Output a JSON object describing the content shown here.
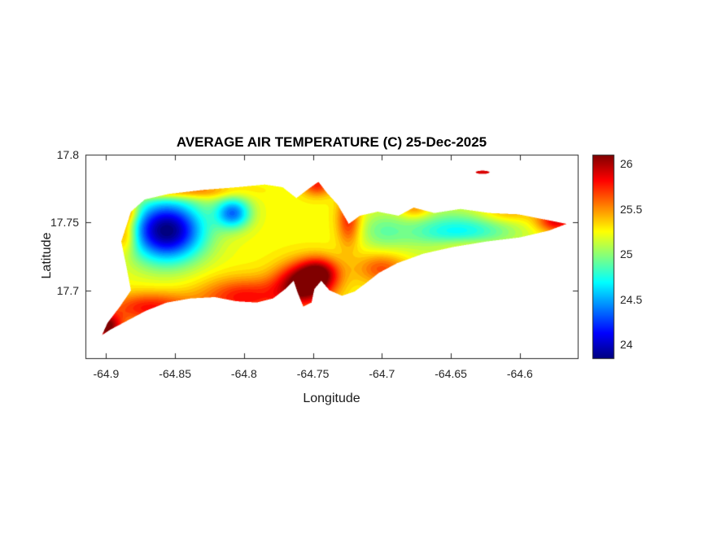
{
  "figure": {
    "title": "AVERAGE AIR TEMPERATURE (C) 25-Dec-2025",
    "xlabel": "Longitude",
    "ylabel": "Latitude"
  },
  "chart_data": {
    "type": "heatmap",
    "subtype": "filled-contour-map",
    "title": "AVERAGE AIR TEMPERATURE (C) 25-Dec-2025",
    "xlabel": "Longitude",
    "ylabel": "Latitude",
    "xlim": [
      -64.915,
      -64.558
    ],
    "ylim": [
      17.65,
      17.8
    ],
    "xtick_values": [
      -64.9,
      -64.85,
      -64.8,
      -64.75,
      -64.7,
      -64.65,
      -64.6
    ],
    "xtick_labels": [
      "-64.9",
      "-64.85",
      "-64.8",
      "-64.75",
      "-64.7",
      "-64.65",
      "-64.6"
    ],
    "ytick_values": [
      17.7,
      17.75,
      17.8
    ],
    "ytick_labels": [
      "17.7",
      "17.75",
      "17.8"
    ],
    "grid": false,
    "legend": false,
    "colorbar": {
      "colormap": "jet",
      "position": "right",
      "clim": [
        23.85,
        26.1
      ],
      "tick_values": [
        24,
        24.5,
        25,
        25.5,
        26
      ],
      "tick_labels": [
        "24",
        "24.5",
        "25",
        "25.5",
        "26"
      ]
    },
    "region": "Island-shaped filled temperature field (St. Croix-like outline); white outside coastline",
    "temp_extremes_c": {
      "min": 23.85,
      "min_location": [
        -64.856,
        17.744
      ],
      "max": 26.3,
      "max_location": [
        -64.757,
        17.704
      ]
    },
    "island_outline_lonlat": [
      [
        -64.889,
        17.736
      ],
      [
        -64.882,
        17.758
      ],
      [
        -64.872,
        17.767
      ],
      [
        -64.855,
        17.771
      ],
      [
        -64.83,
        17.774
      ],
      [
        -64.805,
        17.776
      ],
      [
        -64.785,
        17.778
      ],
      [
        -64.772,
        17.776
      ],
      [
        -64.762,
        17.768
      ],
      [
        -64.753,
        17.775
      ],
      [
        -64.746,
        17.78
      ],
      [
        -64.74,
        17.772
      ],
      [
        -64.732,
        17.763
      ],
      [
        -64.724,
        17.749
      ],
      [
        -64.716,
        17.755
      ],
      [
        -64.703,
        17.758
      ],
      [
        -64.688,
        17.755
      ],
      [
        -64.677,
        17.761
      ],
      [
        -64.662,
        17.757
      ],
      [
        -64.643,
        17.76
      ],
      [
        -64.622,
        17.757
      ],
      [
        -64.601,
        17.756
      ],
      [
        -64.581,
        17.752
      ],
      [
        -64.566,
        17.749
      ],
      [
        -64.579,
        17.744
      ],
      [
        -64.6,
        17.739
      ],
      [
        -64.624,
        17.736
      ],
      [
        -64.648,
        17.732
      ],
      [
        -64.67,
        17.727
      ],
      [
        -64.689,
        17.72
      ],
      [
        -64.702,
        17.713
      ],
      [
        -64.712,
        17.705
      ],
      [
        -64.72,
        17.699
      ],
      [
        -64.729,
        17.696
      ],
      [
        -64.738,
        17.7
      ],
      [
        -64.744,
        17.707
      ],
      [
        -64.749,
        17.701
      ],
      [
        -64.751,
        17.691
      ],
      [
        -64.757,
        17.688
      ],
      [
        -64.761,
        17.698
      ],
      [
        -64.764,
        17.707
      ],
      [
        -64.77,
        17.701
      ],
      [
        -64.779,
        17.694
      ],
      [
        -64.791,
        17.691
      ],
      [
        -64.806,
        17.692
      ],
      [
        -64.821,
        17.695
      ],
      [
        -64.839,
        17.694
      ],
      [
        -64.856,
        17.691
      ],
      [
        -64.871,
        17.685
      ],
      [
        -64.884,
        17.678
      ],
      [
        -64.897,
        17.671
      ],
      [
        -64.903,
        17.667
      ],
      [
        -64.899,
        17.676
      ],
      [
        -64.89,
        17.688
      ],
      [
        -64.882,
        17.7
      ],
      [
        -64.885,
        17.716
      ]
    ],
    "islet_lonlat": {
      "center": [
        -64.627,
        17.787
      ],
      "rx": 0.005,
      "ry": 0.0012,
      "temp_c": 25.9
    },
    "field_model": {
      "base_temp_c": 25.25,
      "contour_step_c": 0.05,
      "anomaly_format": [
        "lon",
        "lat",
        "delta_c",
        "sigma_lon",
        "sigma_lat"
      ],
      "anomalies": [
        [
          -64.856,
          17.744,
          -1.42,
          0.019,
          0.016
        ],
        [
          -64.808,
          17.757,
          -0.85,
          0.009,
          0.008
        ],
        [
          -64.645,
          17.742,
          -0.58,
          0.028,
          0.011
        ],
        [
          -64.7,
          17.744,
          -0.25,
          0.012,
          0.01
        ],
        [
          -64.757,
          17.704,
          0.95,
          0.014,
          0.011
        ],
        [
          -64.745,
          17.713,
          0.6,
          0.01,
          0.008
        ],
        [
          -64.8,
          17.695,
          0.55,
          0.022,
          0.01
        ],
        [
          -64.868,
          17.687,
          0.55,
          0.022,
          0.008
        ],
        [
          -64.9,
          17.673,
          0.9,
          0.008,
          0.007
        ],
        [
          -64.886,
          17.742,
          0.5,
          0.006,
          0.01
        ],
        [
          -64.747,
          17.778,
          0.5,
          0.008,
          0.006
        ],
        [
          -64.724,
          17.752,
          0.5,
          0.006,
          0.014
        ],
        [
          -64.573,
          17.751,
          0.65,
          0.01,
          0.006
        ],
        [
          -64.676,
          17.76,
          0.3,
          0.008,
          0.005
        ],
        [
          -64.7,
          17.716,
          0.4,
          0.013,
          0.008
        ],
        [
          -64.85,
          17.773,
          0.45,
          0.028,
          0.004
        ],
        [
          -64.885,
          17.758,
          0.45,
          0.006,
          0.006
        ],
        [
          -64.61,
          17.757,
          0.25,
          0.015,
          0.005
        ],
        [
          -64.64,
          17.733,
          0.3,
          0.02,
          0.005
        ]
      ]
    }
  }
}
